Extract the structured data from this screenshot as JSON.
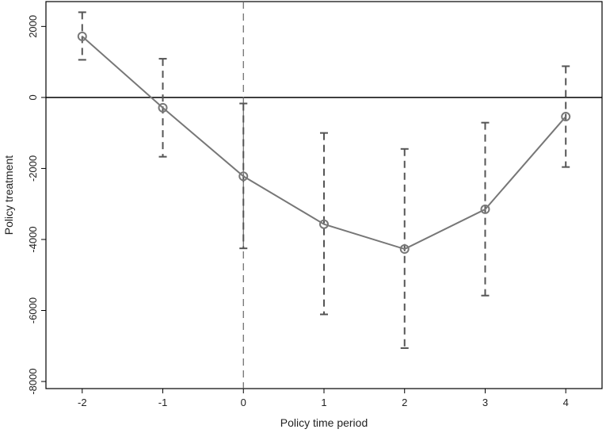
{
  "chart_data": {
    "type": "line",
    "xlabel": "Policy time period",
    "ylabel": "Policy treatment",
    "x": [
      -2,
      -1,
      0,
      1,
      2,
      3,
      4
    ],
    "series": [
      {
        "values": [
          1720,
          -290,
          -2220,
          -3570,
          -4270,
          -3150,
          -540
        ],
        "ci_lower": [
          1060,
          -1670,
          -4250,
          -6110,
          -7060,
          -5580,
          -1960
        ],
        "ci_upper": [
          2400,
          1090,
          -170,
          -1000,
          -1450,
          -710,
          880
        ]
      }
    ],
    "xlim": [
      -2.45,
      4.45
    ],
    "ylim": [
      -8200,
      2700
    ],
    "x_ticks": [
      -2,
      -1,
      0,
      1,
      2,
      3,
      4
    ],
    "x_tick_labels": [
      "-2",
      "-1",
      "0",
      "1",
      "2",
      "3",
      "4"
    ],
    "y_ticks": [
      2000,
      0,
      -2000,
      -4000,
      -6000,
      -8000
    ],
    "y_tick_labels": [
      "2000",
      "0",
      "-2000",
      "-4000",
      "-6000",
      "-8000"
    ],
    "reference_lines": {
      "horizontal_y": 0,
      "vertical_x": 0
    },
    "grid": false,
    "colors": {
      "series": "#777777",
      "ci": "#555555",
      "reference": "#000000",
      "vertical_reference": "#666666"
    }
  }
}
